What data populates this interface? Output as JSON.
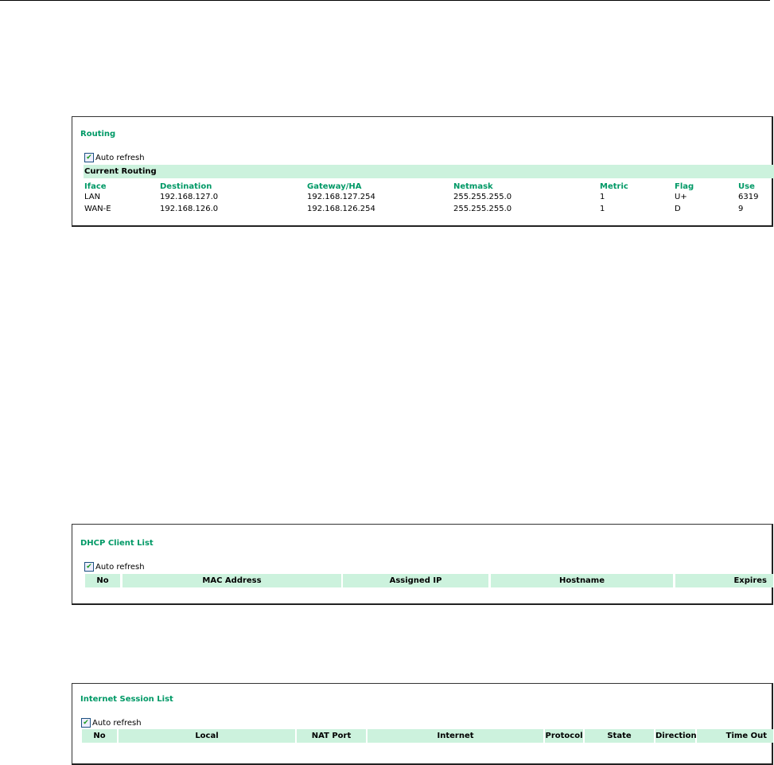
{
  "routing": {
    "title": "Routing",
    "auto_refresh_label": "Auto refresh",
    "auto_refresh_checked": true,
    "section_label": "Current Routing",
    "columns": [
      "Iface",
      "Destination",
      "Gateway/HA",
      "Netmask",
      "Metric",
      "Flag",
      "Use"
    ],
    "rows": [
      [
        "LAN",
        "192.168.127.0",
        "192.168.127.254",
        "255.255.255.0",
        "1",
        "U+",
        "6319"
      ],
      [
        "WAN-E",
        "192.168.126.0",
        "192.168.126.254",
        "255.255.255.0",
        "1",
        "D",
        "9"
      ]
    ]
  },
  "dhcp": {
    "title": "DHCP Client List",
    "auto_refresh_label": "Auto refresh",
    "auto_refresh_checked": true,
    "columns": [
      "No",
      "MAC Address",
      "Assigned IP",
      "Hostname",
      "Expires"
    ]
  },
  "sessions": {
    "title": "Internet Session List",
    "auto_refresh_label": "Auto refresh",
    "auto_refresh_checked": true,
    "columns": [
      "No",
      "Local",
      "NAT Port",
      "Internet",
      "Protocol",
      "State",
      "Direction",
      "Time Out"
    ]
  },
  "colors": {
    "accent": "#009966",
    "header_bg": "#ccf2dd"
  }
}
